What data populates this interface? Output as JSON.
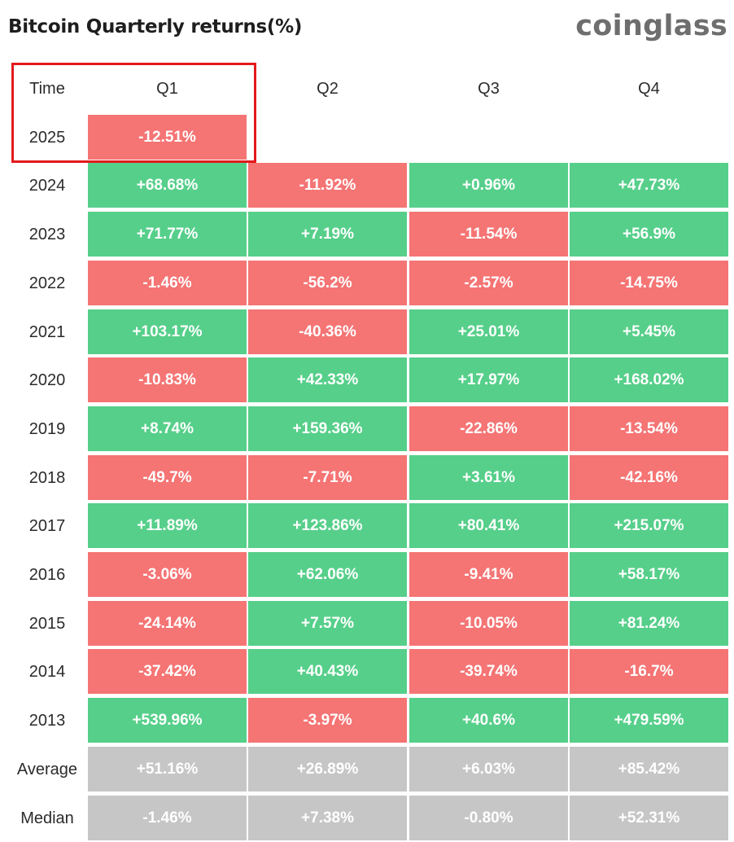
{
  "title": "Bitcoin Quarterly returns(%)",
  "logo": "coinglass",
  "colors": {
    "positive": "#56cf8a",
    "negative": "#f57474",
    "stat": "#c6c6c6",
    "highlight": "#e3191b"
  },
  "header": {
    "time_label": "Time",
    "quarters": [
      "Q1",
      "Q2",
      "Q3",
      "Q4"
    ]
  },
  "rows": [
    {
      "label": "2025",
      "values": [
        "-12.51%",
        "",
        "",
        ""
      ]
    },
    {
      "label": "2024",
      "values": [
        "+68.68%",
        "-11.92%",
        "+0.96%",
        "+47.73%"
      ]
    },
    {
      "label": "2023",
      "values": [
        "+71.77%",
        "+7.19%",
        "-11.54%",
        "+56.9%"
      ]
    },
    {
      "label": "2022",
      "values": [
        "-1.46%",
        "-56.2%",
        "-2.57%",
        "-14.75%"
      ]
    },
    {
      "label": "2021",
      "values": [
        "+103.17%",
        "-40.36%",
        "+25.01%",
        "+5.45%"
      ]
    },
    {
      "label": "2020",
      "values": [
        "-10.83%",
        "+42.33%",
        "+17.97%",
        "+168.02%"
      ]
    },
    {
      "label": "2019",
      "values": [
        "+8.74%",
        "+159.36%",
        "-22.86%",
        "-13.54%"
      ]
    },
    {
      "label": "2018",
      "values": [
        "-49.7%",
        "-7.71%",
        "+3.61%",
        "-42.16%"
      ]
    },
    {
      "label": "2017",
      "values": [
        "+11.89%",
        "+123.86%",
        "+80.41%",
        "+215.07%"
      ]
    },
    {
      "label": "2016",
      "values": [
        "-3.06%",
        "+62.06%",
        "-9.41%",
        "+58.17%"
      ]
    },
    {
      "label": "2015",
      "values": [
        "-24.14%",
        "+7.57%",
        "-10.05%",
        "+81.24%"
      ]
    },
    {
      "label": "2014",
      "values": [
        "-37.42%",
        "+40.43%",
        "-39.74%",
        "-16.7%"
      ]
    },
    {
      "label": "2013",
      "values": [
        "+539.96%",
        "-3.97%",
        "+40.6%",
        "+479.59%"
      ]
    }
  ],
  "stats": [
    {
      "label": "Average",
      "values": [
        "+51.16%",
        "+26.89%",
        "+6.03%",
        "+85.42%"
      ]
    },
    {
      "label": "Median",
      "values": [
        "-1.46%",
        "+7.38%",
        "-0.80%",
        "+52.31%"
      ]
    }
  ],
  "chart_data": {
    "type": "table",
    "title": "Bitcoin Quarterly returns(%)",
    "columns": [
      "Time",
      "Q1",
      "Q2",
      "Q3",
      "Q4"
    ],
    "highlighted": "2025 Q1"
  }
}
